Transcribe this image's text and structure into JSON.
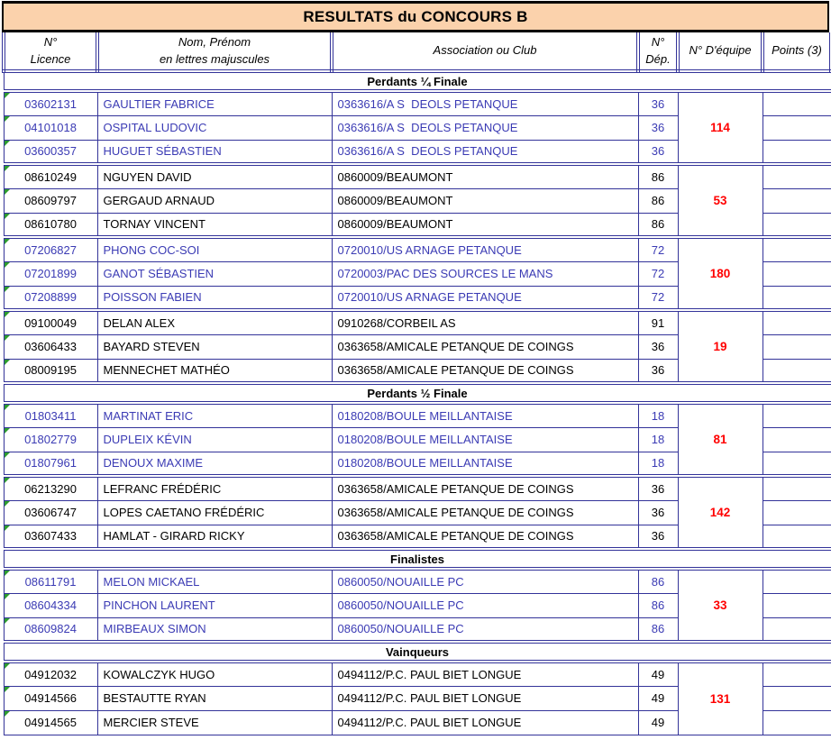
{
  "title": "RESULTATS du CONCOURS B",
  "colors": {
    "title_background": "#FBD2AC",
    "grid_border": "#333399",
    "blue_row_text": "#3B3BB4",
    "black_row_text": "#000000",
    "team_number_text": "#FF0000",
    "error_triangle": "#2E9D2E"
  },
  "table": {
    "columns": [
      {
        "id": "licence",
        "lines": [
          "N°",
          "Licence"
        ]
      },
      {
        "id": "name",
        "lines": [
          "Nom, Prénom",
          "en lettres majuscules"
        ]
      },
      {
        "id": "club",
        "lines": [
          "Association ou Club"
        ]
      },
      {
        "id": "dep",
        "lines": [
          "N°",
          "Dép."
        ]
      },
      {
        "id": "team",
        "lines": [
          "N° D'équipe"
        ]
      },
      {
        "id": "points",
        "lines": [
          "Points (3)"
        ]
      }
    ],
    "points_values": ""
  },
  "sections": [
    {
      "label": "Perdants ¼ Finale",
      "teams": [
        {
          "team_number": "114",
          "text_color": "blue",
          "players": [
            {
              "licence": "03602131",
              "name": "GAULTIER FABRICE",
              "club": "0363616/A S  DEOLS PETANQUE",
              "dep": "36"
            },
            {
              "licence": "04101018",
              "name": "OSPITAL LUDOVIC",
              "club": "0363616/A S  DEOLS PETANQUE",
              "dep": "36"
            },
            {
              "licence": "03600357",
              "name": "HUGUET SÉBASTIEN",
              "club": "0363616/A S  DEOLS PETANQUE",
              "dep": "36"
            }
          ]
        },
        {
          "team_number": "53",
          "text_color": "black",
          "players": [
            {
              "licence": "08610249",
              "name": "NGUYEN DAVID",
              "club": "0860009/BEAUMONT",
              "dep": "86"
            },
            {
              "licence": "08609797",
              "name": "GERGAUD ARNAUD",
              "club": "0860009/BEAUMONT",
              "dep": "86"
            },
            {
              "licence": "08610780",
              "name": "TORNAY VINCENT",
              "club": "0860009/BEAUMONT",
              "dep": "86"
            }
          ]
        },
        {
          "team_number": "180",
          "text_color": "blue",
          "players": [
            {
              "licence": "07206827",
              "name": "PHONG COC-SOI",
              "club": "0720010/US ARNAGE PETANQUE",
              "dep": "72"
            },
            {
              "licence": "07201899",
              "name": "GANOT SÉBASTIEN",
              "club": "0720003/PAC DES SOURCES LE MANS",
              "dep": "72"
            },
            {
              "licence": "07208899",
              "name": "POISSON FABIEN",
              "club": "0720010/US ARNAGE PETANQUE",
              "dep": "72"
            }
          ]
        },
        {
          "team_number": "19",
          "text_color": "black",
          "players": [
            {
              "licence": "09100049",
              "name": "DELAN ALEX",
              "club": "0910268/CORBEIL AS",
              "dep": "91"
            },
            {
              "licence": "03606433",
              "name": "BAYARD STEVEN",
              "club": "0363658/AMICALE PETANQUE DE COINGS",
              "dep": "36"
            },
            {
              "licence": "08009195",
              "name": "MENNECHET MATHÉO",
              "club": "0363658/AMICALE PETANQUE DE COINGS",
              "dep": "36"
            }
          ]
        }
      ]
    },
    {
      "label": "Perdants ½ Finale",
      "teams": [
        {
          "team_number": "81",
          "text_color": "blue",
          "players": [
            {
              "licence": "01803411",
              "name": "MARTINAT ERIC",
              "club": "0180208/BOULE MEILLANTAISE",
              "dep": "18"
            },
            {
              "licence": "01802779",
              "name": "DUPLEIX KÉVIN",
              "club": "0180208/BOULE MEILLANTAISE",
              "dep": "18"
            },
            {
              "licence": "01807961",
              "name": "DENOUX MAXIME",
              "club": "0180208/BOULE MEILLANTAISE",
              "dep": "18"
            }
          ]
        },
        {
          "team_number": "142",
          "text_color": "black",
          "players": [
            {
              "licence": "06213290",
              "name": "LEFRANC FRÉDÉRIC",
              "club": "0363658/AMICALE PETANQUE DE COINGS",
              "dep": "36"
            },
            {
              "licence": "03606747",
              "name": "LOPES CAETANO FRÉDÉRIC",
              "club": "0363658/AMICALE PETANQUE DE COINGS",
              "dep": "36"
            },
            {
              "licence": "03607433",
              "name": "HAMLAT - GIRARD RICKY",
              "club": "0363658/AMICALE PETANQUE DE COINGS",
              "dep": "36"
            }
          ]
        }
      ]
    },
    {
      "label": "Finalistes",
      "teams": [
        {
          "team_number": "33",
          "text_color": "blue",
          "players": [
            {
              "licence": "08611791",
              "name": "MELON MICKAEL",
              "club": "0860050/NOUAILLE PC",
              "dep": "86"
            },
            {
              "licence": "08604334",
              "name": "PINCHON LAURENT",
              "club": "0860050/NOUAILLE PC",
              "dep": "86"
            },
            {
              "licence": "08609824",
              "name": "MIRBEAUX SIMON",
              "club": "0860050/NOUAILLE PC",
              "dep": "86"
            }
          ]
        }
      ]
    },
    {
      "label": "Vainqueurs",
      "teams": [
        {
          "team_number": "131",
          "text_color": "black",
          "players": [
            {
              "licence": "04912032",
              "name": "KOWALCZYK HUGO",
              "club": "0494112/P.C. PAUL BIET LONGUE",
              "dep": "49"
            },
            {
              "licence": "04914566",
              "name": "BESTAUTTE RYAN",
              "club": "0494112/P.C. PAUL BIET LONGUE",
              "dep": "49"
            },
            {
              "licence": "04914565",
              "name": "MERCIER STEVE",
              "club": "0494112/P.C. PAUL BIET LONGUE",
              "dep": "49"
            }
          ]
        }
      ]
    }
  ]
}
